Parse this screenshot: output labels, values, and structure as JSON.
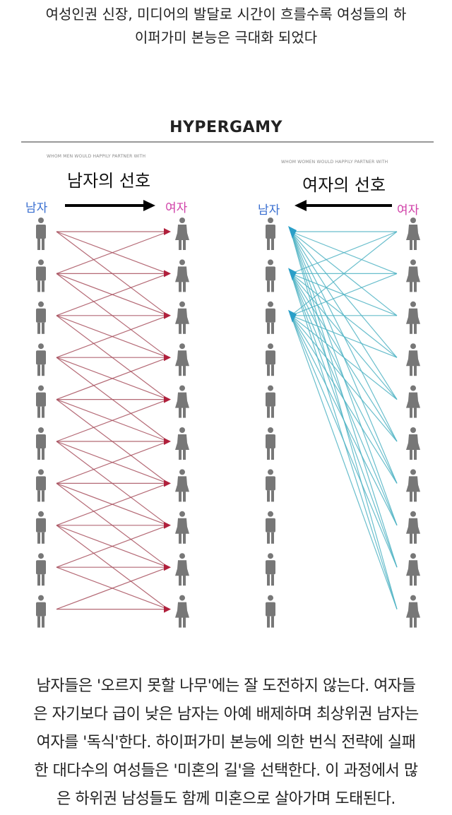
{
  "top_caption": {
    "lines": [
      "여성인권 신장, 미디어의 발달로 시간이 흐를수록 여성들의 하",
      "이퍼가미 본능은 극대화 되었다"
    ]
  },
  "diagram": {
    "title": "HYPERGAMY",
    "left": {
      "subtitle": "WHOM MEN WOULD HAPPILY PARTNER WITH",
      "heading": "남자의 선호",
      "from_label": "남자",
      "to_label": "여자",
      "arrow_direction": "right",
      "line_color": "#a8505e",
      "arrow_color": "#b0203c",
      "connections": [
        [
          0,
          0
        ],
        [
          0,
          1
        ],
        [
          0,
          2
        ],
        [
          1,
          0
        ],
        [
          1,
          1
        ],
        [
          1,
          2
        ],
        [
          1,
          3
        ],
        [
          2,
          1
        ],
        [
          2,
          2
        ],
        [
          2,
          3
        ],
        [
          2,
          4
        ],
        [
          3,
          2
        ],
        [
          3,
          3
        ],
        [
          3,
          4
        ],
        [
          3,
          5
        ],
        [
          4,
          3
        ],
        [
          4,
          4
        ],
        [
          4,
          5
        ],
        [
          4,
          6
        ],
        [
          5,
          4
        ],
        [
          5,
          5
        ],
        [
          5,
          6
        ],
        [
          5,
          7
        ],
        [
          6,
          5
        ],
        [
          6,
          6
        ],
        [
          6,
          7
        ],
        [
          6,
          8
        ],
        [
          7,
          6
        ],
        [
          7,
          7
        ],
        [
          7,
          8
        ],
        [
          7,
          9
        ],
        [
          8,
          7
        ],
        [
          8,
          8
        ],
        [
          8,
          9
        ],
        [
          9,
          8
        ],
        [
          9,
          9
        ]
      ]
    },
    "right": {
      "subtitle": "WHOM WOMEN WOULD HAPPILY PARTNER WITH",
      "heading": "여자의 선호",
      "from_label": "여자",
      "to_label": "남자",
      "arrow_direction": "left",
      "line_color": "#4fb3c4",
      "arrow_color": "#2a9fc8",
      "chosen_men": [
        0,
        1,
        2
      ]
    },
    "rows": 10,
    "figure_color": "#777777",
    "men_label_color": "#3a6fd0",
    "women_label_color": "#d040a8"
  },
  "bottom_caption": {
    "lines": [
      "남자들은 '오르지 못할 나무'에는 잘 도전하지 않는다. 여자들",
      "은 자기보다 급이 낮은 남자는 아예 배제하며 최상위권 남자는",
      "여자를 '독식'한다. 하이퍼가미 본능에 의한 번식 전략에 실패",
      "한 대다수의 여성들은 '미혼의 길'을 선택한다. 이 과정에서 많",
      "은 하위권 남성들도 함께 미혼으로 살아가며 도태된다."
    ]
  }
}
